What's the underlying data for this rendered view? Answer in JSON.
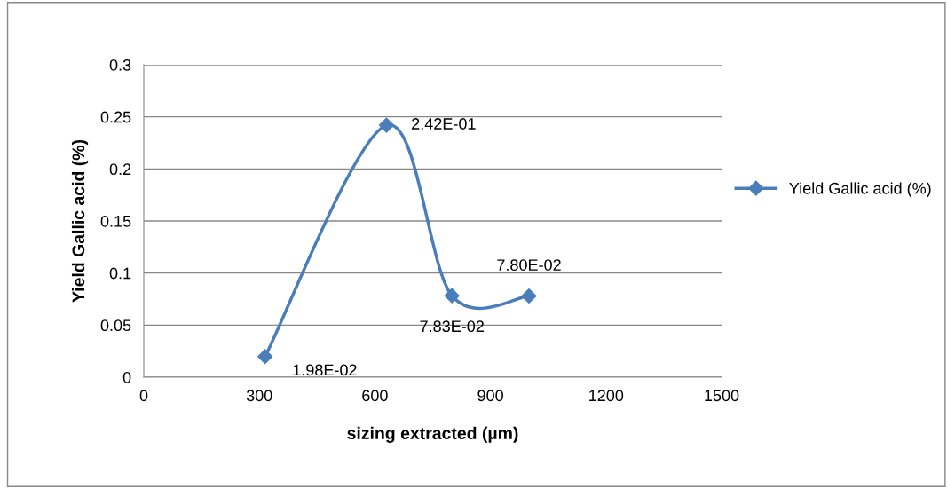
{
  "chart_data": {
    "type": "line",
    "xlabel": "sizing extracted (µm)",
    "ylabel": "Yield Gallic acid (%)",
    "x": [
      315,
      630,
      800,
      1000
    ],
    "series": [
      {
        "name": "Yield Gallic acid (%)",
        "color": "#4a7ebb",
        "values": [
          0.0198,
          0.242,
          0.0783,
          0.078
        ],
        "value_labels": [
          "1.98E-02",
          "2.42E-01",
          "7.83E-02",
          "7.80E-02"
        ]
      }
    ],
    "xlim": [
      0,
      1500
    ],
    "xticks": [
      0,
      300,
      600,
      900,
      1200,
      1500
    ],
    "ylim": [
      0,
      0.3
    ],
    "yticks": [
      0,
      0.05,
      0.1,
      0.15,
      0.2,
      0.25,
      0.3
    ],
    "grid": "y",
    "legend": "right",
    "marker": "diamond",
    "line_style": "solid"
  }
}
